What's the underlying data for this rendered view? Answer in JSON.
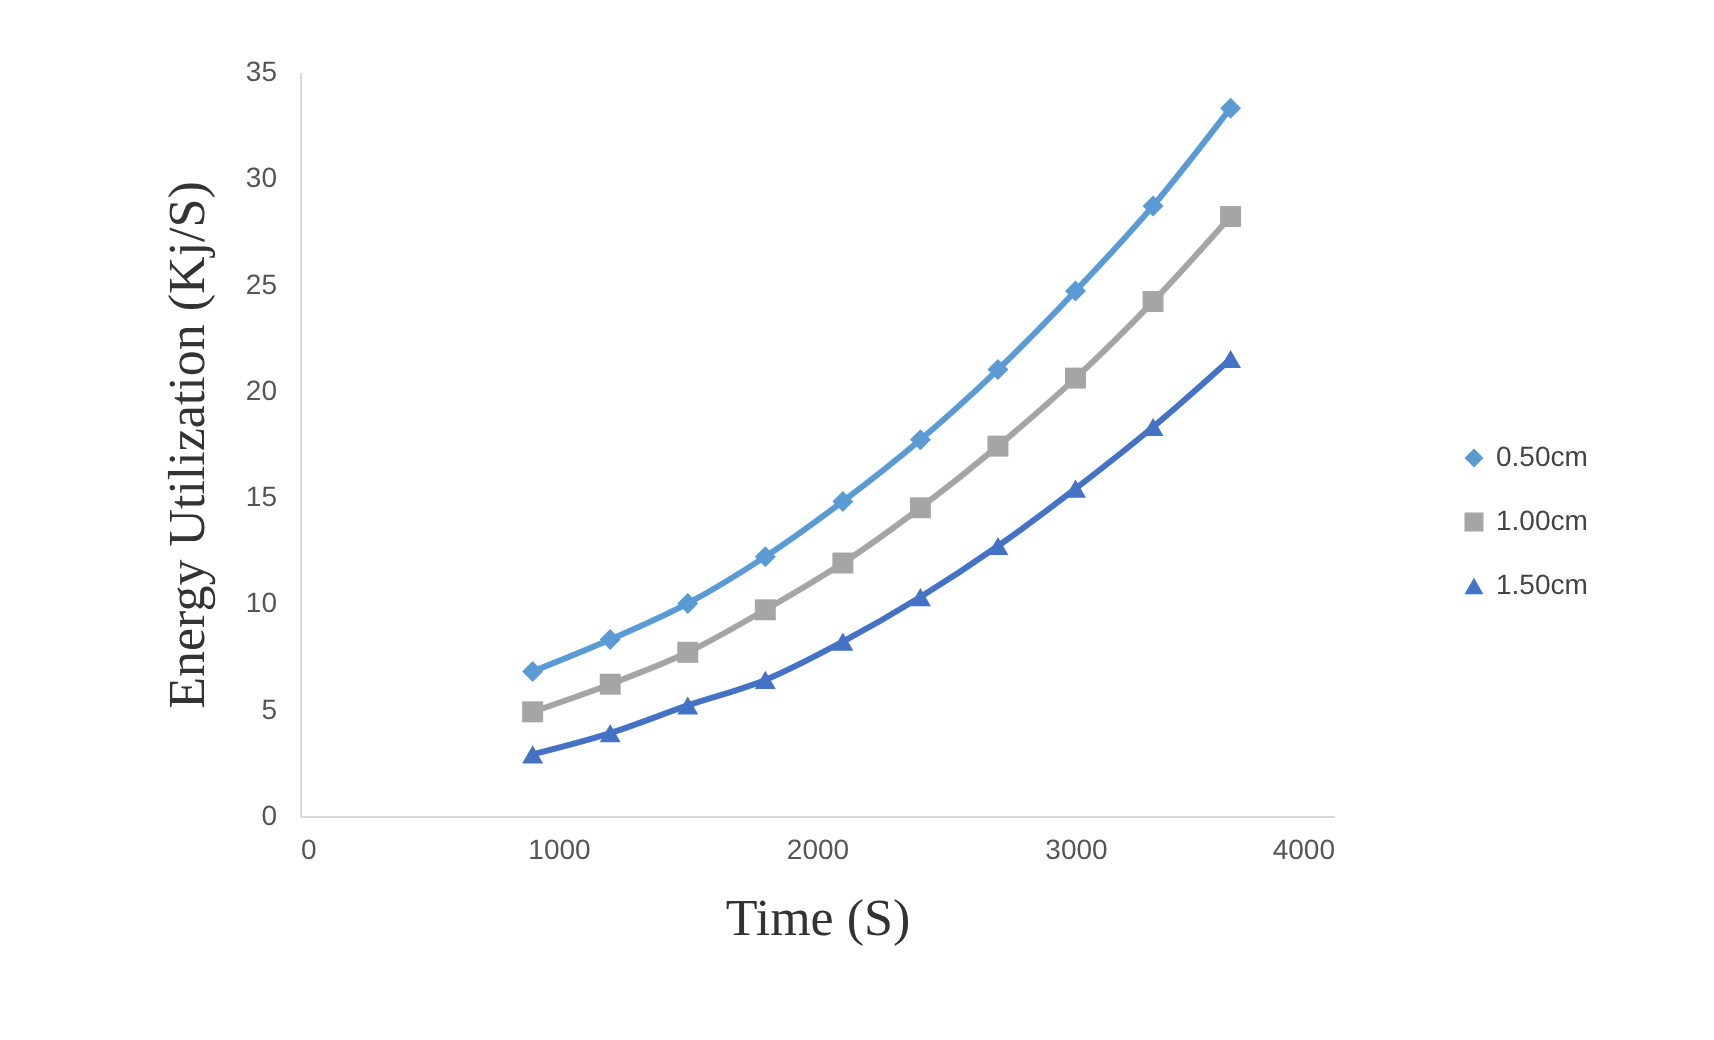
{
  "chart_data": {
    "type": "line",
    "xlabel": "Time (S)",
    "ylabel": "Energy Utilization  (Kj/S)",
    "x": [
      900,
      1200,
      1500,
      1800,
      2100,
      2400,
      2700,
      3000,
      3300,
      3600
    ],
    "series": [
      {
        "name": "0.50cm",
        "color": "#5b9bd5",
        "marker": "diamond",
        "values": [
          6.8,
          8.3,
          10.0,
          12.2,
          14.8,
          17.7,
          21.0,
          24.7,
          28.7,
          33.3
        ]
      },
      {
        "name": "1.00cm",
        "color": "#a5a5a5",
        "marker": "square",
        "values": [
          4.9,
          6.2,
          7.7,
          9.7,
          11.9,
          14.5,
          17.4,
          20.6,
          24.2,
          28.2
        ]
      },
      {
        "name": "1.50cm",
        "color": "#4472c4",
        "marker": "triangle",
        "values": [
          2.9,
          3.9,
          5.2,
          6.4,
          8.2,
          10.3,
          12.7,
          15.4,
          18.3,
          21.5
        ]
      }
    ],
    "xlim": [
      0,
      4000
    ],
    "xticks": [
      0,
      1000,
      2000,
      3000,
      4000
    ],
    "ylim": [
      0,
      35
    ],
    "yticks": [
      0,
      5,
      10,
      15,
      20,
      25,
      30,
      35
    ],
    "grid": false,
    "legend": "right",
    "line_style": "solid"
  }
}
